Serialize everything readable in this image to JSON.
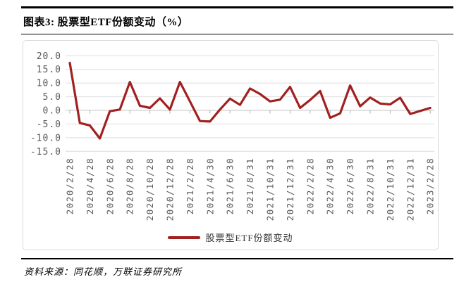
{
  "header": {
    "title": "图表3: 股票型ETF份额变动（%）"
  },
  "chart_data": {
    "type": "line",
    "title": "股票型ETF份额变动（%）",
    "legend": [
      "股票型ETF份额变动"
    ],
    "legend_position": "bottom-center",
    "grid": true,
    "line_color": "#A12020",
    "axis_text_color": "#595959",
    "gridline_color": "#dedede",
    "zero_line_color": "#c6c6c6",
    "tick_color": "#adadad",
    "ylim": [
      -15,
      20
    ],
    "yticklabels": [
      "20.0",
      "15.0",
      "10.0",
      "5.0",
      "0.0",
      "-5.0",
      "-10.0",
      "-15.0"
    ],
    "yticks": [
      20,
      15,
      10,
      5,
      0,
      -5,
      -10,
      -15
    ],
    "categories": [
      "2020/2",
      "2020/3",
      "2020/4",
      "2020/5",
      "2020/6",
      "2020/7",
      "2020/8",
      "2020/9",
      "2020/10",
      "2020/11",
      "2020/12",
      "2021/1",
      "2021/2",
      "2021/3",
      "2021/4",
      "2021/5",
      "2021/6",
      "2021/7",
      "2021/8",
      "2021/9",
      "2021/10",
      "2021/11",
      "2021/12",
      "2022/1",
      "2022/2",
      "2022/3",
      "2022/4",
      "2022/5",
      "2022/6",
      "2022/7",
      "2022/8",
      "2022/9",
      "2022/10",
      "2022/11",
      "2022/12",
      "2023/1",
      "2023/2"
    ],
    "values": [
      17.4,
      -4.6,
      -5.5,
      -10.3,
      -0.3,
      0.3,
      10.4,
      1.7,
      0.9,
      4.4,
      0.3,
      10.4,
      3.3,
      -3.9,
      -4.1,
      0.3,
      4.3,
      2.0,
      8.0,
      6.0,
      3.3,
      3.9,
      8.6,
      0.9,
      3.8,
      7.1,
      -2.7,
      -1.1,
      9.1,
      1.5,
      4.7,
      2.5,
      2.2,
      4.6,
      -1.3,
      -0.2,
      0.9
    ],
    "xticklabels": [
      "2020/2/28",
      "2020/4/28",
      "2020/6/28",
      "2020/8/28",
      "2020/10/28",
      "2020/12/28",
      "2021/2/28",
      "2021/4/30",
      "2021/6/30",
      "2021/8/31",
      "2021/10/31",
      "2021/12/31",
      "2022/2/28",
      "2022/4/30",
      "2022/6/30",
      "2022/8/31",
      "2022/10/31",
      "2022/12/31",
      "2023/2/28"
    ],
    "xtick_every": 2
  },
  "footer": {
    "source": "资料来源：同花顺，万联证券研究所"
  }
}
